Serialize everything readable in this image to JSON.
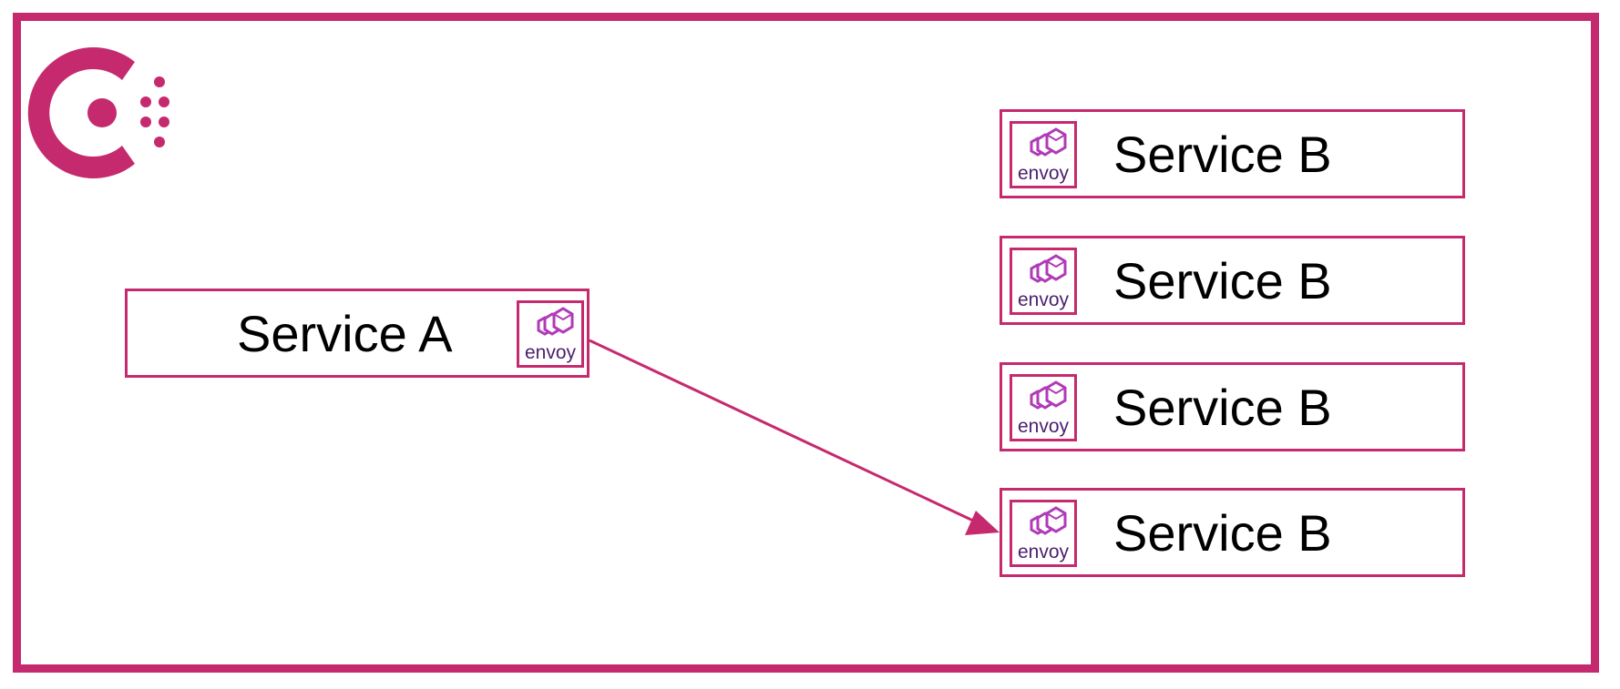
{
  "colors": {
    "accent": "#c62a6e",
    "envoy_purple": "#b03ab8",
    "envoy_dark": "#4b1f6e",
    "text": "#000000"
  },
  "logo": {
    "icon": "consul-logo-icon"
  },
  "service_a": {
    "label": "Service A",
    "proxy_label": "envoy",
    "proxy_icon": "envoy-icon"
  },
  "service_b": [
    {
      "label": "Service B",
      "proxy_label": "envoy",
      "proxy_icon": "envoy-icon"
    },
    {
      "label": "Service B",
      "proxy_label": "envoy",
      "proxy_icon": "envoy-icon"
    },
    {
      "label": "Service B",
      "proxy_label": "envoy",
      "proxy_icon": "envoy-icon"
    },
    {
      "label": "Service B",
      "proxy_label": "envoy",
      "proxy_icon": "envoy-icon"
    }
  ],
  "connection": {
    "from": "Service A",
    "to_index": 3,
    "arrow": "one-way"
  }
}
